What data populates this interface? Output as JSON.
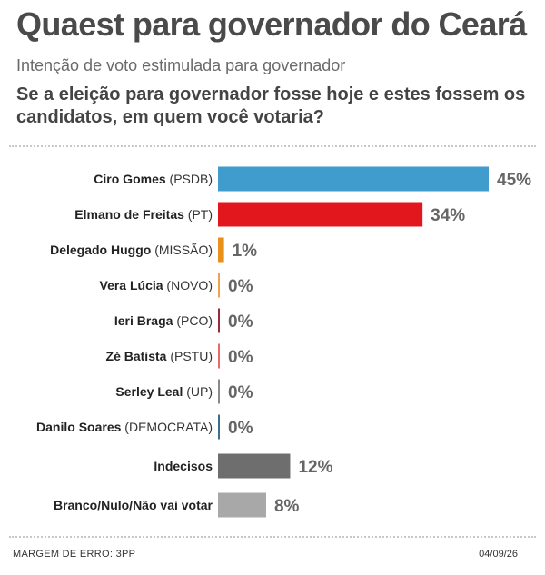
{
  "header": {
    "title": "Quaest para governador do Ceará",
    "subtitle": "Intenção de voto estimulada para governador",
    "question": "Se a eleição para governador fosse hoje e estes fossem os candidatos, em quem você votaria?"
  },
  "chart_data": {
    "type": "bar",
    "orientation": "horizontal",
    "categories": [
      "Ciro Gomes (PSDB)",
      "Elmano de Freitas (PT)",
      "Delegado Huggo (MISSÃO)",
      "Vera Lúcia (NOVO)",
      "Ieri Braga (PCO)",
      "Zé Batista (PSTU)",
      "Serley Leal (UP)",
      "Danilo Soares (DEMOCRATA)",
      "Indecisos",
      "Branco/Nulo/Não vai votar"
    ],
    "names": [
      "Ciro Gomes",
      "Elmano de Freitas",
      "Delegado Huggo",
      "Vera Lúcia",
      "Ieri Braga",
      "Zé Batista",
      "Serley Leal",
      "Danilo Soares",
      "Indecisos",
      "Branco/Nulo/Não vai votar"
    ],
    "parties": [
      "(PSDB)",
      "(PT)",
      "(MISSÃO)",
      "(NOVO)",
      "(PCO)",
      "(PSTU)",
      "(UP)",
      "(DEMOCRATA)",
      "",
      ""
    ],
    "values": [
      45,
      34,
      1,
      0,
      0,
      0,
      0,
      0,
      12,
      8
    ],
    "value_labels": [
      "45%",
      "34%",
      "1%",
      "0%",
      "0%",
      "0%",
      "0%",
      "0%",
      "12%",
      "8%"
    ],
    "colors": [
      "#3f9ccc",
      "#e2171e",
      "#e8901a",
      "#f0a050",
      "#9a2a3a",
      "#e86a6a",
      "#8a8a8a",
      "#3a6f8f",
      "#6e6e6e",
      "#a8a8a8"
    ],
    "unit": "%",
    "xlim": [
      0,
      45
    ],
    "grid": false,
    "legend": "none"
  },
  "footer": {
    "margin_of_error": "MARGEM DE ERRO: 3PP",
    "date": "04/09/26"
  }
}
